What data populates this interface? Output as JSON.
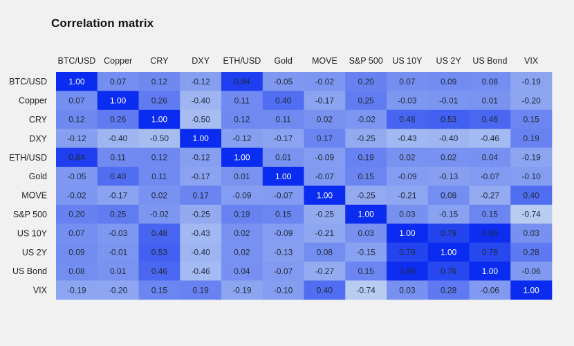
{
  "title": "Correlation matrix",
  "colors": {
    "background": "#f1f1f2",
    "scale_low": "#c4d7f2",
    "scale_high": "#0a2cf0",
    "label_text": "#222222"
  },
  "chart_data": {
    "type": "heatmap",
    "title": "Correlation matrix",
    "columns": [
      "BTC/USD",
      "Copper",
      "CRY",
      "DXY",
      "ETH/USD",
      "Gold",
      "MOVE",
      "S&P 500",
      "US 10Y",
      "US 2Y",
      "US Bond",
      "VIX"
    ],
    "rows": [
      "BTC/USD",
      "Copper",
      "CRY",
      "DXY",
      "ETH/USD",
      "Gold",
      "MOVE",
      "S&P 500",
      "US 10Y",
      "US 2Y",
      "US Bond",
      "VIX"
    ],
    "value_range": [
      -1,
      1
    ],
    "values": [
      [
        "1.00",
        "0.07",
        "0.12",
        "-0.12",
        "0.84",
        "-0.05",
        "-0.02",
        "0.20",
        "0.07",
        "0.09",
        "0.08",
        "-0.19"
      ],
      [
        "0.07",
        "1.00",
        "0.26",
        "-0.40",
        "0.11",
        "0.40",
        "-0.17",
        "0.25",
        "-0.03",
        "-0.01",
        "0.01",
        "-0.20"
      ],
      [
        "0.12",
        "0.26",
        "1.00",
        "-0.50",
        "0.12",
        "0.11",
        "0.02",
        "-0.02",
        "0.48",
        "0.53",
        "0.46",
        "0.15"
      ],
      [
        "-0.12",
        "-0.40",
        "-0.50",
        "1.00",
        "-0.12",
        "-0.17",
        "0.17",
        "-0.25",
        "-0.43",
        "-0.40",
        "-0.46",
        "0.19"
      ],
      [
        "0.84",
        "0.11",
        "0.12",
        "-0.12",
        "1.00",
        "0.01",
        "-0.09",
        "0.19",
        "0.02",
        "0.02",
        "0.04",
        "-0.19"
      ],
      [
        "-0.05",
        "0.40",
        "0.11",
        "-0.17",
        "0.01",
        "1.00",
        "-0.07",
        "0.15",
        "-0.09",
        "-0.13",
        "-0.07",
        "-0.10"
      ],
      [
        "-0.02",
        "-0.17",
        "0.02",
        "0.17",
        "-0.09",
        "-0.07",
        "1.00",
        "-0.25",
        "-0.21",
        "0.08",
        "-0.27",
        "0.40"
      ],
      [
        "0.20",
        "0.25",
        "-0.02",
        "-0.25",
        "0.19",
        "0.15",
        "-0.25",
        "1.00",
        "0.03",
        "-0.15",
        "0.15",
        "-0.74"
      ],
      [
        "0.07",
        "-0.03",
        "0.48",
        "-0.43",
        "0.02",
        "-0.09",
        "-0.21",
        "0.03",
        "1.00",
        "0.79",
        "0.98",
        "0.03"
      ],
      [
        "0.09",
        "-0.01",
        "0.53",
        "-0.40",
        "0.02",
        "-0.13",
        "0.08",
        "-0.15",
        "0.79",
        "1.00",
        "0.76",
        "0.28"
      ],
      [
        "0.08",
        "0.01",
        "0.46",
        "-0.46",
        "0.04",
        "-0.07",
        "-0.27",
        "0.15",
        "0.98",
        "0.76",
        "1.00",
        "-0.06"
      ],
      [
        "-0.19",
        "-0.20",
        "0.15",
        "0.19",
        "-0.19",
        "-0.10",
        "0.40",
        "-0.74",
        "0.03",
        "0.28",
        "-0.06",
        "1.00"
      ]
    ]
  }
}
